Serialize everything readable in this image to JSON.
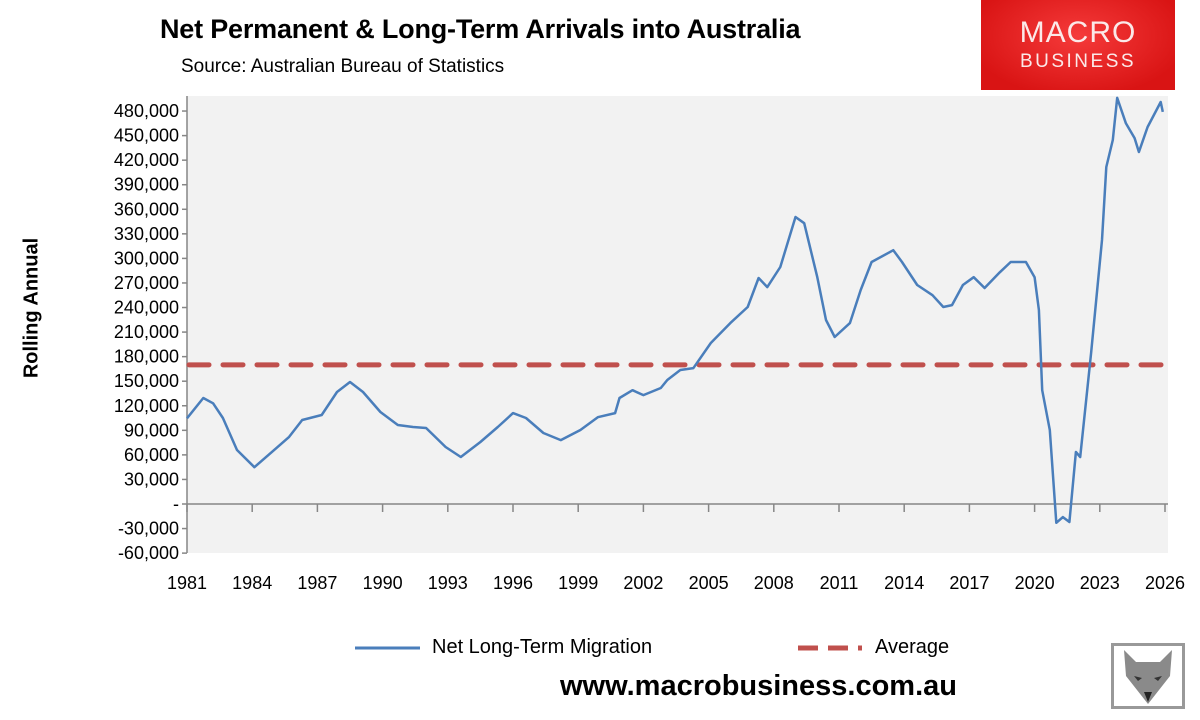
{
  "header": {
    "title": "Net Permanent & Long-Term Arrivals into Australia",
    "subtitle": "Source: Australian Bureau of Statistics"
  },
  "logo": {
    "line1": "MACRO",
    "line2": "BUSINESS",
    "color": "#e31e1e"
  },
  "footer": {
    "url": "www.macrobusiness.com.au",
    "mascot_icon": "fox-icon"
  },
  "chart_data": {
    "type": "line",
    "title": "Net Permanent & Long-Term Arrivals into Australia",
    "ylabel": "Rolling Annual",
    "xlabel": "",
    "xlim": [
      1981,
      2026
    ],
    "ylim": [
      -60000,
      495000
    ],
    "x_ticks": [
      "1981",
      "1984",
      "1987",
      "1990",
      "1993",
      "1996",
      "1999",
      "2002",
      "2005",
      "2008",
      "2011",
      "2014",
      "2017",
      "2020",
      "2023",
      "2026"
    ],
    "y_ticks": [
      "-60,000",
      "-30,000",
      "-",
      "30,000",
      "60,000",
      "90,000",
      "120,000",
      "150,000",
      "180,000",
      "210,000",
      "240,000",
      "270,000",
      "300,000",
      "330,000",
      "360,000",
      "390,000",
      "420,000",
      "450,000",
      "480,000"
    ],
    "grid": false,
    "legend": "bottom",
    "series": [
      {
        "name": "Net Long-Term Migration",
        "color": "#4a7ebb",
        "style": "solid",
        "x": [
          1981.0,
          1981.75,
          1982.2,
          1982.65,
          1983.3,
          1984.1,
          1985.1,
          1985.7,
          1986.3,
          1987.2,
          1987.9,
          1988.5,
          1989.1,
          1989.9,
          1990.7,
          1991.4,
          1992.0,
          1992.9,
          1993.6,
          1994.5,
          1995.3,
          1996.0,
          1996.6,
          1997.4,
          1998.2,
          1999.1,
          1999.9,
          2000.7,
          2000.9,
          2001.5,
          2002.0,
          2002.8,
          2003.1,
          2003.7,
          2004.3,
          2005.1,
          2006.0,
          2006.8,
          2007.3,
          2007.7,
          2008.3,
          2009.0,
          2009.4,
          2010.0,
          2010.4,
          2010.8,
          2011.5,
          2012.0,
          2012.5,
          2013.5,
          2013.9,
          2014.6,
          2015.3,
          2015.8,
          2016.2,
          2016.7,
          2017.2,
          2017.7,
          2018.4,
          2018.9,
          2019.6,
          2020.0,
          2020.2,
          2020.35,
          2020.7,
          2021.0,
          2021.3,
          2021.6,
          2021.9,
          2022.1,
          2022.6,
          2023.1,
          2023.3,
          2023.6,
          2023.8,
          2024.2,
          2024.6,
          2024.8,
          2025.2,
          2025.8,
          2025.9
        ],
        "y": [
          104700,
          129500,
          123000,
          105000,
          66000,
          45000,
          68000,
          82000,
          102600,
          108700,
          136800,
          149000,
          136800,
          112400,
          96500,
          94000,
          92800,
          69600,
          57400,
          75700,
          94000,
          111000,
          105000,
          86700,
          78000,
          90400,
          106000,
          111000,
          129500,
          139000,
          133000,
          141700,
          151500,
          163700,
          166000,
          196700,
          221000,
          240600,
          276000,
          265000,
          289500,
          350600,
          343000,
          277000,
          224800,
          204000,
          221000,
          261400,
          295600,
          310000,
          295600,
          267500,
          255000,
          240600,
          243000,
          267500,
          277000,
          263800,
          283000,
          295600,
          295600,
          277000,
          237000,
          139000,
          90400,
          -23000,
          -16000,
          -22000,
          63500,
          57400,
          184400,
          322500,
          411700,
          444600,
          496000,
          465000,
          447000,
          430000,
          460500,
          491000,
          479000
        ]
      },
      {
        "name": "Average",
        "color": "#c0504d",
        "style": "dashed",
        "x": [
          1981,
          2026
        ],
        "y": [
          170000,
          170000
        ]
      }
    ]
  }
}
